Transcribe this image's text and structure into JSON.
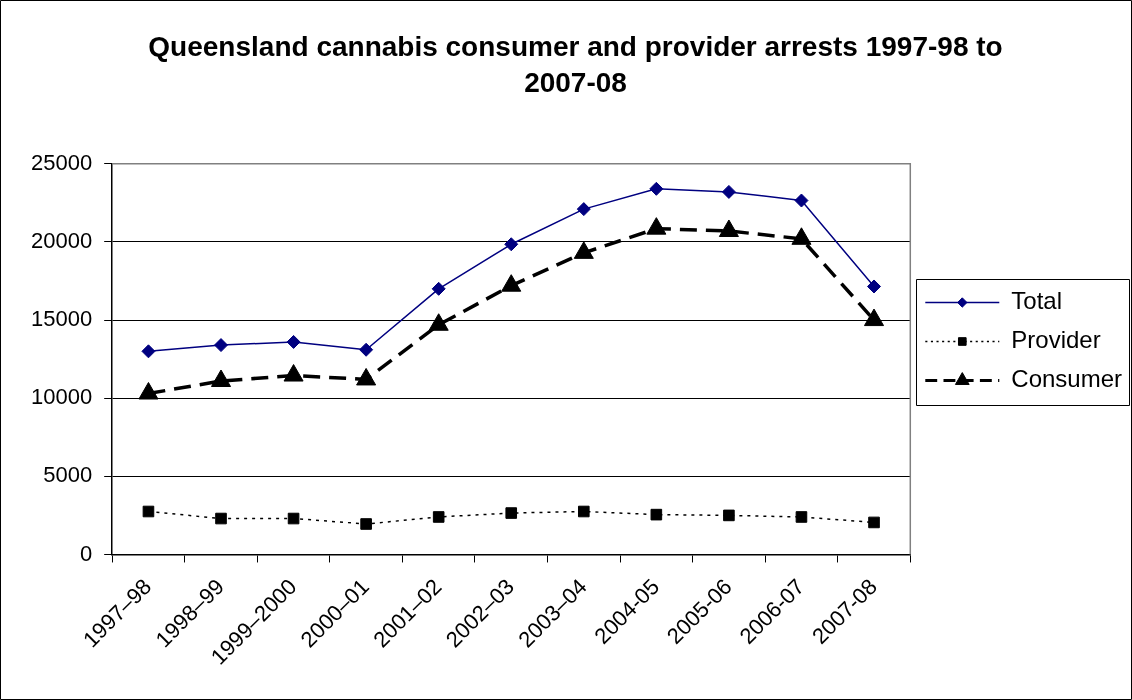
{
  "chart_data": {
    "type": "line",
    "title": "Queensland cannabis consumer and provider arrests 1997-98 to 2007-08",
    "categories": [
      "1997–98",
      "1998–99",
      "1999–2000",
      "2000–01",
      "2001–02",
      "2002–03",
      "2003–04",
      "2004-05",
      "2005-06",
      "2006-07",
      "2007-08"
    ],
    "series": [
      {
        "name": "Total",
        "color": "#000080",
        "marker": "diamond",
        "line_style": "solid",
        "values": [
          13000,
          13400,
          13600,
          13100,
          17000,
          19850,
          22100,
          23400,
          23200,
          22650,
          17150
        ]
      },
      {
        "name": "Provider",
        "color": "#000000",
        "marker": "square",
        "line_style": "dotted",
        "values": [
          2750,
          2300,
          2300,
          1950,
          2400,
          2650,
          2750,
          2550,
          2500,
          2400,
          2050
        ]
      },
      {
        "name": "Consumer",
        "color": "#000000",
        "marker": "triangle",
        "line_style": "dashed",
        "values": [
          10300,
          11100,
          11450,
          11200,
          14700,
          17200,
          19300,
          20850,
          20700,
          20200,
          15000
        ]
      }
    ],
    "ylim": [
      0,
      25000
    ],
    "yticks": [
      0,
      5000,
      10000,
      15000,
      20000,
      25000
    ],
    "grid": "y",
    "legend": "right"
  }
}
